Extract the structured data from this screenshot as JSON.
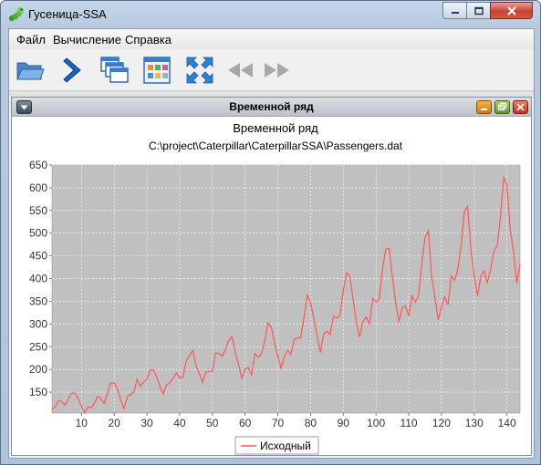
{
  "window": {
    "title": "Гусеница-SSA"
  },
  "menu": {
    "items": [
      {
        "label": "Файл"
      },
      {
        "label": "Вычисление"
      },
      {
        "label": "Справка"
      }
    ]
  },
  "toolbar": {
    "buttons": [
      {
        "icon": "folder-open-icon"
      },
      {
        "icon": "chevron-right-icon"
      },
      {
        "icon": "windows-cascade-icon"
      },
      {
        "icon": "grid-layout-icon"
      },
      {
        "icon": "expand-arrows-icon"
      },
      {
        "icon": "rewind-icon"
      },
      {
        "icon": "fast-forward-icon"
      }
    ]
  },
  "internal_frame": {
    "title": "Временной ряд"
  },
  "chart_data": {
    "type": "line",
    "title": "Временной ряд",
    "subtitle": "C:\\project\\Caterpillar\\CaterpillarSSA\\Passengers.dat",
    "xlabel": "",
    "ylabel": "",
    "xlim": [
      1,
      144
    ],
    "ylim": [
      104,
      650
    ],
    "xticks": [
      10,
      20,
      30,
      40,
      50,
      60,
      70,
      80,
      90,
      100,
      110,
      120,
      130,
      140
    ],
    "yticks": [
      150,
      200,
      250,
      300,
      350,
      400,
      450,
      500,
      550,
      600,
      650
    ],
    "grid": true,
    "legend": "bottom",
    "background_color": "#c0c0c0",
    "line_color": "#ff5555",
    "series": [
      {
        "name": "Исходный",
        "values": [
          112,
          118,
          132,
          129,
          121,
          135,
          148,
          148,
          136,
          119,
          104,
          118,
          115,
          126,
          141,
          135,
          125,
          149,
          170,
          170,
          158,
          133,
          114,
          140,
          145,
          150,
          178,
          163,
          172,
          178,
          199,
          199,
          184,
          162,
          146,
          166,
          171,
          180,
          193,
          181,
          183,
          218,
          230,
          242,
          209,
          191,
          172,
          194,
          196,
          196,
          236,
          235,
          229,
          243,
          264,
          272,
          237,
          211,
          180,
          201,
          204,
          188,
          235,
          227,
          234,
          264,
          302,
          293,
          259,
          229,
          203,
          229,
          242,
          233,
          267,
          269,
          270,
          315,
          364,
          347,
          312,
          274,
          237,
          278,
          284,
          277,
          317,
          313,
          318,
          374,
          413,
          405,
          355,
          306,
          271,
          306,
          315,
          301,
          356,
          348,
          355,
          422,
          465,
          467,
          404,
          347,
          305,
          336,
          340,
          318,
          362,
          348,
          363,
          435,
          491,
          505,
          404,
          359,
          310,
          337,
          360,
          342,
          406,
          396,
          420,
          472,
          548,
          559,
          463,
          407,
          362,
          405,
          417,
          391,
          419,
          461,
          472,
          535,
          622,
          606,
          508,
          461,
          390,
          432
        ]
      }
    ]
  }
}
